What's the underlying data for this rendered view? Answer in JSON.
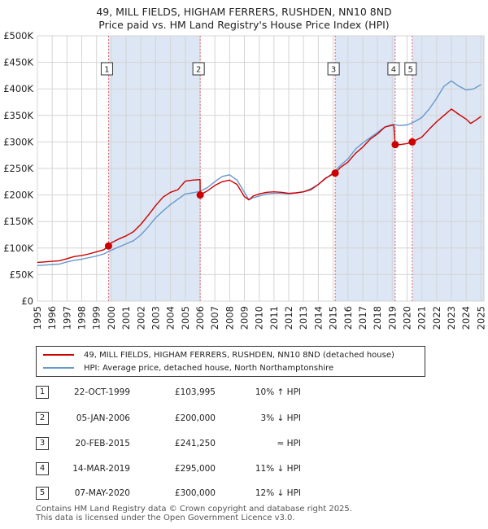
{
  "title_line1": "49, MILL FIELDS, HIGHAM FERRERS, RUSHDEN, NN10 8ND",
  "title_line2": "Price paid vs. HM Land Registry's House Price Index (HPI)",
  "colors": {
    "property": "#cc0000",
    "hpi": "#6699cc",
    "shade": "#dde6f4",
    "vline": "#e06666"
  },
  "legend": {
    "property": "49, MILL FIELDS, HIGHAM FERRERS, RUSHDEN, NN10 8ND (detached house)",
    "hpi": "HPI: Average price, detached house, North Northamptonshire"
  },
  "sales": [
    {
      "num": "1",
      "date": "22-OCT-1999",
      "price": "£103,995",
      "hpi": "10% ↑ HPI"
    },
    {
      "num": "2",
      "date": "05-JAN-2006",
      "price": "£200,000",
      "hpi": "3% ↓ HPI"
    },
    {
      "num": "3",
      "date": "20-FEB-2015",
      "price": "£241,250",
      "hpi": "≈ HPI"
    },
    {
      "num": "4",
      "date": "14-MAR-2019",
      "price": "£295,000",
      "hpi": "11% ↓ HPI"
    },
    {
      "num": "5",
      "date": "07-MAY-2020",
      "price": "£300,000",
      "hpi": "12% ↓ HPI"
    }
  ],
  "footer_line1": "Contains HM Land Registry data © Crown copyright and database right 2025.",
  "footer_line2": "This data is licensed under the Open Government Licence v3.0.",
  "chart_data": {
    "type": "line",
    "title": "49, MILL FIELDS, HIGHAM FERRERS, RUSHDEN, NN10 8ND",
    "subtitle": "Price paid vs. HM Land Registry's House Price Index (HPI)",
    "xlabel": "",
    "ylabel": "",
    "xlim": [
      1995,
      2025.2
    ],
    "ylim": [
      0,
      500000
    ],
    "grid": true,
    "x_ticks": [
      1995,
      1996,
      1997,
      1998,
      1999,
      2000,
      2001,
      2002,
      2003,
      2004,
      2005,
      2006,
      2007,
      2008,
      2009,
      2010,
      2011,
      2012,
      2013,
      2014,
      2015,
      2016,
      2017,
      2018,
      2019,
      2020,
      2021,
      2022,
      2023,
      2024,
      2025
    ],
    "y_ticks": [
      {
        "value": 0,
        "label": "£0"
      },
      {
        "value": 50000,
        "label": "£50K"
      },
      {
        "value": 100000,
        "label": "£100K"
      },
      {
        "value": 150000,
        "label": "£150K"
      },
      {
        "value": 200000,
        "label": "£200K"
      },
      {
        "value": 250000,
        "label": "£250K"
      },
      {
        "value": 300000,
        "label": "£300K"
      },
      {
        "value": 350000,
        "label": "£350K"
      },
      {
        "value": 400000,
        "label": "£400K"
      },
      {
        "value": 450000,
        "label": "£450K"
      },
      {
        "value": 500000,
        "label": "£500K"
      }
    ],
    "shaded_periods": [
      [
        1999.81,
        2006.01
      ],
      [
        2015.14,
        2019.2
      ],
      [
        2020.35,
        2025.2
      ]
    ],
    "sales": [
      {
        "label": "1",
        "x": 1999.81,
        "y": 103995
      },
      {
        "label": "2",
        "x": 2006.01,
        "y": 200000
      },
      {
        "label": "3",
        "x": 2015.14,
        "y": 241250
      },
      {
        "label": "4",
        "x": 2019.2,
        "y": 295000
      },
      {
        "label": "5",
        "x": 2020.35,
        "y": 300000
      }
    ],
    "series": [
      {
        "name": "49, MILL FIELDS, HIGHAM FERRERS, RUSHDEN, NN10 8ND (detached house)",
        "key": "property",
        "x": [
          1995,
          1995.5,
          1996,
          1996.5,
          1997,
          1997.5,
          1998,
          1998.5,
          1999,
          1999.5,
          1999.81,
          2000,
          2000.5,
          2001,
          2001.5,
          2002,
          2002.5,
          2003,
          2003.5,
          2004,
          2004.5,
          2005,
          2005.5,
          2006.0,
          2006.01,
          2006.5,
          2007,
          2007.5,
          2008,
          2008.5,
          2009,
          2009.3,
          2009.6,
          2010,
          2010.5,
          2011,
          2011.5,
          2012,
          2012.5,
          2013,
          2013.5,
          2014,
          2014.5,
          2015.1,
          2015.14,
          2015.5,
          2016,
          2016.5,
          2017,
          2017.5,
          2018,
          2018.5,
          2019.1,
          2019.2,
          2019.5,
          2020,
          2020.35,
          2020.5,
          2021,
          2021.5,
          2022,
          2022.5,
          2023,
          2023.5,
          2024,
          2024.3,
          2024.6,
          2025
        ],
        "y": [
          73000,
          74000,
          75000,
          76000,
          80000,
          84000,
          86000,
          89000,
          93000,
          97000,
          103995,
          110000,
          117000,
          123000,
          131000,
          145000,
          162000,
          180000,
          196000,
          205000,
          210000,
          226000,
          228000,
          229000,
          200000,
          208000,
          218000,
          225000,
          228000,
          220000,
          197000,
          191000,
          198000,
          202000,
          205000,
          206000,
          205000,
          203000,
          204000,
          206000,
          210000,
          220000,
          232000,
          241000,
          241250,
          252000,
          262000,
          278000,
          290000,
          305000,
          315000,
          328000,
          332000,
          295000,
          295000,
          297000,
          300000,
          302000,
          309000,
          324000,
          338000,
          350000,
          362000,
          352000,
          343000,
          335000,
          340000,
          348000
        ]
      },
      {
        "name": "HPI: Average price, detached house, North Northamptonshire",
        "key": "hpi",
        "x": [
          1995,
          1995.5,
          1996,
          1996.5,
          1997,
          1997.5,
          1998,
          1998.5,
          1999,
          1999.5,
          2000,
          2000.5,
          2001,
          2001.5,
          2002,
          2002.5,
          2003,
          2003.5,
          2004,
          2004.5,
          2005,
          2005.5,
          2006,
          2006.5,
          2007,
          2007.5,
          2008,
          2008.5,
          2009,
          2009.3,
          2009.6,
          2010,
          2010.5,
          2011,
          2011.5,
          2012,
          2012.5,
          2013,
          2013.5,
          2014,
          2014.5,
          2015,
          2015.5,
          2016,
          2016.5,
          2017,
          2017.5,
          2018,
          2018.5,
          2019,
          2019.5,
          2020,
          2020.5,
          2021,
          2021.5,
          2022,
          2022.5,
          2023,
          2023.5,
          2024,
          2024.5,
          2025
        ],
        "y": [
          67000,
          68000,
          69000,
          70000,
          74000,
          77000,
          79000,
          82000,
          85000,
          89000,
          96000,
          102000,
          108000,
          114000,
          125000,
          140000,
          157000,
          170000,
          182000,
          192000,
          202000,
          204000,
          207000,
          214000,
          225000,
          235000,
          238000,
          228000,
          205000,
          191000,
          195000,
          198000,
          202000,
          203000,
          203000,
          202000,
          204000,
          206000,
          212000,
          220000,
          231000,
          242000,
          256000,
          268000,
          286000,
          298000,
          308000,
          318000,
          328000,
          333000,
          331000,
          332000,
          338000,
          346000,
          362000,
          382000,
          405000,
          415000,
          405000,
          398000,
          400000,
          408000
        ]
      }
    ]
  }
}
